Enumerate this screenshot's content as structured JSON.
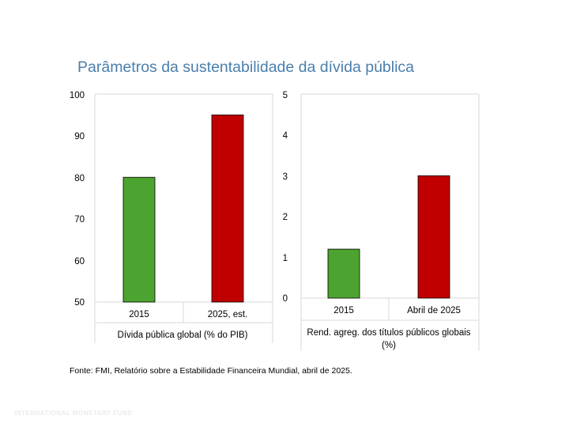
{
  "page": {
    "title": "Parâmetros da sustentabilidade da dívida pública",
    "source": "Fonte: FMI, Relatório sobre a Estabilidade Financeira Mundial, abril de 2025.",
    "footer": "INTERNATIONAL MONETARY FUND"
  },
  "colors": {
    "green": "#4da32f",
    "red": "#c00000",
    "grid": "#d9d9d9"
  },
  "chart_data": [
    {
      "type": "bar",
      "categories": [
        "2015",
        "2025, est."
      ],
      "values": [
        80,
        95
      ],
      "bar_colors": [
        "#4da32f",
        "#c00000"
      ],
      "ylim": [
        50,
        100
      ],
      "yticks": [
        "100",
        "90",
        "80",
        "70",
        "60",
        "50"
      ],
      "xlabel": "Dívida pública global (% do PIB)"
    },
    {
      "type": "bar",
      "categories": [
        "2015",
        "Abril de 2025"
      ],
      "values": [
        1.2,
        3
      ],
      "bar_colors": [
        "#4da32f",
        "#c00000"
      ],
      "ylim": [
        0,
        5
      ],
      "yticks": [
        "5",
        "4",
        "3",
        "2",
        "1",
        "0"
      ],
      "xlabel_lines": [
        "Rend. agreg. dos títulos públicos globais",
        "(%)"
      ]
    }
  ]
}
